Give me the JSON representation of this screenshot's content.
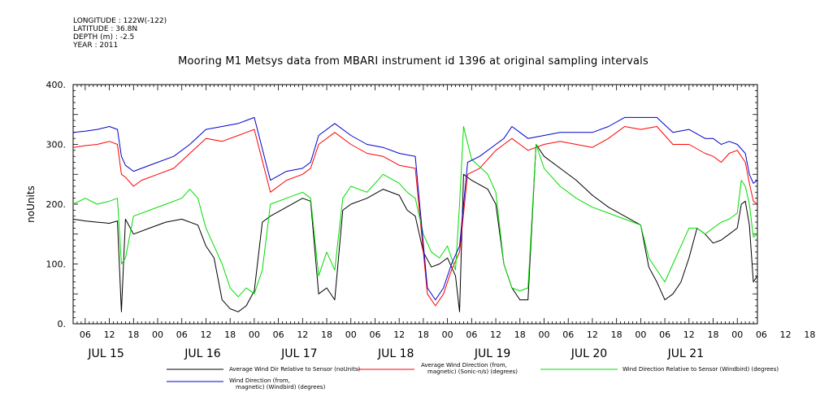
{
  "header": {
    "longitude": "LONGITUDE : 122W(-122)",
    "latitude": "LATITUDE : 36.8N",
    "depth": "DEPTH (m) : -2.5",
    "year": "YEAR : 2011"
  },
  "chart_data": {
    "type": "line",
    "title": "Mooring M1 Metsys data from MBARI instrument id 1396 at original sampling intervals",
    "ylabel": "noUnits",
    "xlabel": "",
    "ylim": [
      0,
      400
    ],
    "yticks": [
      0,
      100,
      200,
      300,
      400
    ],
    "ytick_labels": [
      "0.",
      "100.",
      "200.",
      "300.",
      "400."
    ],
    "xlim": [
      3,
      173
    ],
    "hour_tick_labels": [
      "06",
      "12",
      "18",
      "00",
      "06",
      "12",
      "18",
      "00",
      "06",
      "12",
      "18",
      "00",
      "06",
      "12",
      "18",
      "00",
      "06",
      "12",
      "18",
      "00",
      "06",
      "12",
      "18",
      "00",
      "06",
      "12",
      "18",
      "00",
      "06",
      "12",
      "18"
    ],
    "day_labels": [
      "JUL 15",
      "JUL 16",
      "JUL 17",
      "JUL 18",
      "JUL 19",
      "JUL 20",
      "JUL 21"
    ],
    "grid": false,
    "legend_position": "bottom",
    "series": [
      {
        "name": "Average Wind Dir Relative to Sensor (noUnits)",
        "color": "#000000",
        "points": [
          [
            3,
            175
          ],
          [
            6,
            172
          ],
          [
            9,
            170
          ],
          [
            12,
            168
          ],
          [
            14,
            172
          ],
          [
            15,
            20
          ],
          [
            16,
            175
          ],
          [
            18,
            150
          ],
          [
            22,
            160
          ],
          [
            26,
            170
          ],
          [
            30,
            175
          ],
          [
            34,
            165
          ],
          [
            36,
            130
          ],
          [
            38,
            110
          ],
          [
            40,
            40
          ],
          [
            42,
            25
          ],
          [
            44,
            20
          ],
          [
            46,
            30
          ],
          [
            48,
            55
          ],
          [
            50,
            170
          ],
          [
            52,
            180
          ],
          [
            56,
            195
          ],
          [
            60,
            210
          ],
          [
            62,
            205
          ],
          [
            64,
            50
          ],
          [
            66,
            60
          ],
          [
            68,
            40
          ],
          [
            70,
            190
          ],
          [
            72,
            200
          ],
          [
            76,
            210
          ],
          [
            80,
            225
          ],
          [
            84,
            215
          ],
          [
            86,
            190
          ],
          [
            88,
            180
          ],
          [
            90,
            120
          ],
          [
            92,
            95
          ],
          [
            94,
            100
          ],
          [
            96,
            110
          ],
          [
            98,
            80
          ],
          [
            99,
            20
          ],
          [
            100,
            250
          ],
          [
            102,
            240
          ],
          [
            106,
            225
          ],
          [
            108,
            200
          ],
          [
            110,
            100
          ],
          [
            112,
            60
          ],
          [
            114,
            40
          ],
          [
            116,
            40
          ],
          [
            118,
            300
          ],
          [
            120,
            280
          ],
          [
            124,
            260
          ],
          [
            128,
            240
          ],
          [
            132,
            215
          ],
          [
            136,
            195
          ],
          [
            140,
            180
          ],
          [
            144,
            165
          ],
          [
            146,
            95
          ],
          [
            148,
            70
          ],
          [
            150,
            40
          ],
          [
            152,
            50
          ],
          [
            154,
            70
          ],
          [
            156,
            110
          ],
          [
            158,
            160
          ],
          [
            160,
            150
          ],
          [
            162,
            135
          ],
          [
            164,
            140
          ],
          [
            166,
            150
          ],
          [
            168,
            160
          ],
          [
            169,
            200
          ],
          [
            170,
            205
          ],
          [
            171,
            165
          ],
          [
            172,
            70
          ],
          [
            173,
            80
          ]
        ]
      },
      {
        "name": "Average Wind Direction (from, magnetic) (Sonic-n/s) (degrees)",
        "color": "#ff0000",
        "points": [
          [
            3,
            295
          ],
          [
            6,
            298
          ],
          [
            9,
            300
          ],
          [
            12,
            305
          ],
          [
            14,
            300
          ],
          [
            15,
            250
          ],
          [
            16,
            245
          ],
          [
            18,
            230
          ],
          [
            20,
            240
          ],
          [
            24,
            250
          ],
          [
            28,
            260
          ],
          [
            32,
            285
          ],
          [
            36,
            310
          ],
          [
            40,
            305
          ],
          [
            44,
            315
          ],
          [
            46,
            320
          ],
          [
            48,
            325
          ],
          [
            52,
            220
          ],
          [
            56,
            240
          ],
          [
            60,
            250
          ],
          [
            62,
            260
          ],
          [
            64,
            300
          ],
          [
            68,
            320
          ],
          [
            72,
            300
          ],
          [
            76,
            285
          ],
          [
            80,
            280
          ],
          [
            84,
            265
          ],
          [
            88,
            260
          ],
          [
            91,
            50
          ],
          [
            93,
            30
          ],
          [
            95,
            50
          ],
          [
            97,
            90
          ],
          [
            99,
            120
          ],
          [
            101,
            250
          ],
          [
            104,
            260
          ],
          [
            108,
            290
          ],
          [
            110,
            300
          ],
          [
            112,
            310
          ],
          [
            114,
            300
          ],
          [
            116,
            290
          ],
          [
            120,
            300
          ],
          [
            124,
            305
          ],
          [
            128,
            300
          ],
          [
            132,
            295
          ],
          [
            136,
            310
          ],
          [
            140,
            330
          ],
          [
            144,
            325
          ],
          [
            148,
            330
          ],
          [
            152,
            300
          ],
          [
            156,
            300
          ],
          [
            160,
            285
          ],
          [
            162,
            280
          ],
          [
            164,
            270
          ],
          [
            166,
            285
          ],
          [
            168,
            290
          ],
          [
            170,
            270
          ],
          [
            171,
            235
          ],
          [
            172,
            205
          ],
          [
            173,
            200
          ]
        ]
      },
      {
        "name": "Wind Direction Relative to Sensor (Windbird) (degrees)",
        "color": "#00dd00",
        "points": [
          [
            3,
            200
          ],
          [
            6,
            210
          ],
          [
            9,
            200
          ],
          [
            12,
            205
          ],
          [
            14,
            210
          ],
          [
            15,
            100
          ],
          [
            16,
            110
          ],
          [
            18,
            180
          ],
          [
            22,
            190
          ],
          [
            26,
            200
          ],
          [
            30,
            210
          ],
          [
            32,
            225
          ],
          [
            34,
            210
          ],
          [
            36,
            160
          ],
          [
            38,
            130
          ],
          [
            40,
            100
          ],
          [
            42,
            60
          ],
          [
            44,
            45
          ],
          [
            46,
            60
          ],
          [
            48,
            50
          ],
          [
            50,
            90
          ],
          [
            52,
            200
          ],
          [
            56,
            210
          ],
          [
            60,
            220
          ],
          [
            62,
            210
          ],
          [
            64,
            80
          ],
          [
            66,
            120
          ],
          [
            68,
            90
          ],
          [
            70,
            210
          ],
          [
            72,
            230
          ],
          [
            76,
            220
          ],
          [
            80,
            250
          ],
          [
            84,
            235
          ],
          [
            86,
            220
          ],
          [
            88,
            210
          ],
          [
            90,
            150
          ],
          [
            92,
            120
          ],
          [
            94,
            110
          ],
          [
            96,
            130
          ],
          [
            98,
            90
          ],
          [
            99,
            200
          ],
          [
            100,
            330
          ],
          [
            102,
            275
          ],
          [
            106,
            250
          ],
          [
            108,
            220
          ],
          [
            110,
            100
          ],
          [
            112,
            60
          ],
          [
            114,
            55
          ],
          [
            116,
            60
          ],
          [
            118,
            300
          ],
          [
            120,
            260
          ],
          [
            124,
            230
          ],
          [
            128,
            210
          ],
          [
            132,
            195
          ],
          [
            136,
            185
          ],
          [
            140,
            175
          ],
          [
            144,
            165
          ],
          [
            146,
            110
          ],
          [
            148,
            90
          ],
          [
            150,
            70
          ],
          [
            152,
            100
          ],
          [
            154,
            130
          ],
          [
            156,
            160
          ],
          [
            158,
            160
          ],
          [
            160,
            150
          ],
          [
            162,
            160
          ],
          [
            164,
            170
          ],
          [
            166,
            175
          ],
          [
            168,
            185
          ],
          [
            169,
            240
          ],
          [
            170,
            230
          ],
          [
            171,
            200
          ],
          [
            172,
            145
          ],
          [
            173,
            150
          ]
        ]
      },
      {
        "name": "Wind Direction (from, magnetic) (Windbird) (degrees)",
        "color": "#0000cc",
        "points": [
          [
            3,
            320
          ],
          [
            6,
            322
          ],
          [
            9,
            325
          ],
          [
            12,
            330
          ],
          [
            14,
            325
          ],
          [
            15,
            280
          ],
          [
            16,
            265
          ],
          [
            18,
            255
          ],
          [
            20,
            260
          ],
          [
            24,
            270
          ],
          [
            28,
            280
          ],
          [
            32,
            300
          ],
          [
            36,
            325
          ],
          [
            40,
            330
          ],
          [
            44,
            335
          ],
          [
            46,
            340
          ],
          [
            48,
            345
          ],
          [
            52,
            240
          ],
          [
            56,
            255
          ],
          [
            60,
            260
          ],
          [
            62,
            270
          ],
          [
            64,
            315
          ],
          [
            68,
            335
          ],
          [
            72,
            315
          ],
          [
            76,
            300
          ],
          [
            80,
            295
          ],
          [
            84,
            285
          ],
          [
            88,
            280
          ],
          [
            91,
            60
          ],
          [
            93,
            40
          ],
          [
            95,
            60
          ],
          [
            97,
            100
          ],
          [
            99,
            130
          ],
          [
            101,
            270
          ],
          [
            104,
            280
          ],
          [
            108,
            300
          ],
          [
            110,
            310
          ],
          [
            112,
            330
          ],
          [
            114,
            320
          ],
          [
            116,
            310
          ],
          [
            120,
            315
          ],
          [
            124,
            320
          ],
          [
            128,
            320
          ],
          [
            132,
            320
          ],
          [
            136,
            330
          ],
          [
            140,
            345
          ],
          [
            144,
            345
          ],
          [
            148,
            345
          ],
          [
            152,
            320
          ],
          [
            156,
            325
          ],
          [
            160,
            310
          ],
          [
            162,
            310
          ],
          [
            164,
            300
          ],
          [
            166,
            305
          ],
          [
            168,
            300
          ],
          [
            170,
            285
          ],
          [
            171,
            250
          ],
          [
            172,
            235
          ],
          [
            173,
            240
          ]
        ]
      }
    ]
  }
}
